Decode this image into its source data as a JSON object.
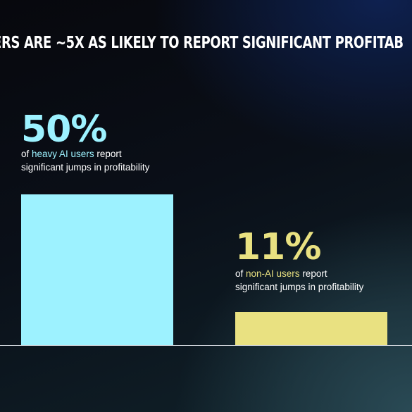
{
  "headline": "ERS ARE ~5X AS LIKELY TO REPORT SIGNIFICANT PROFITAB",
  "colors": {
    "heavy_ai": "#9df2ff",
    "non_ai": "#e9e181",
    "text": "#ffffff"
  },
  "stats": [
    {
      "value": "50%",
      "prefix": "of ",
      "highlight": "heavy AI users",
      "suffix": " report",
      "line2": "significant jumps in profitability"
    },
    {
      "value": "11%",
      "prefix": "of ",
      "highlight": "non-AI users",
      "suffix": " report",
      "line2": "significant jumps in profitability"
    }
  ],
  "chart_data": {
    "type": "bar",
    "categories": [
      "heavy AI users",
      "non-AI users"
    ],
    "values": [
      50,
      11
    ],
    "unit": "%",
    "title": "ERS ARE ~5X AS LIKELY TO REPORT SIGNIFICANT PROFITAB"
  }
}
